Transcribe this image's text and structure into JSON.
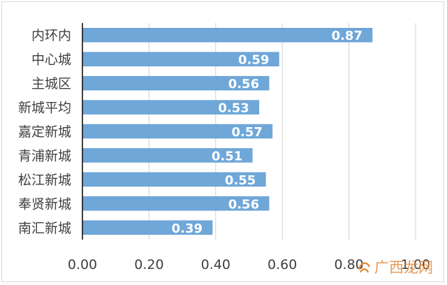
{
  "chart_data": {
    "type": "bar",
    "orientation": "horizontal",
    "title": "",
    "xlabel": "",
    "ylabel": "",
    "categories": [
      "内环内",
      "中心城",
      "主城区",
      "新城平均",
      "嘉定新城",
      "青浦新城",
      "松江新城",
      "奉贤新城",
      "南汇新城"
    ],
    "values": [
      0.87,
      0.59,
      0.56,
      0.53,
      0.57,
      0.51,
      0.55,
      0.56,
      0.39
    ],
    "data_labels": [
      "0.87",
      "0.59",
      "0.56",
      "0.53",
      "0.57",
      "0.51",
      "0.55",
      "0.56",
      "0.39"
    ],
    "xlim": [
      0,
      1.0
    ],
    "x_ticks": [
      0,
      0.2,
      0.4,
      0.6,
      0.8,
      1.0
    ],
    "x_tick_labels": [
      "0.00",
      "0.20",
      "0.40",
      "0.60",
      "0.80",
      "1.00"
    ],
    "grid": "vertical",
    "legend": "none",
    "colors": {
      "bar": "#6fa7d9",
      "bar_edge": "#5b95c9",
      "grid": "#d0d0d0",
      "axis": "#000000",
      "text": "#404040",
      "data_label": "#ffffff"
    }
  },
  "watermark": {
    "text": "广西龙网"
  }
}
